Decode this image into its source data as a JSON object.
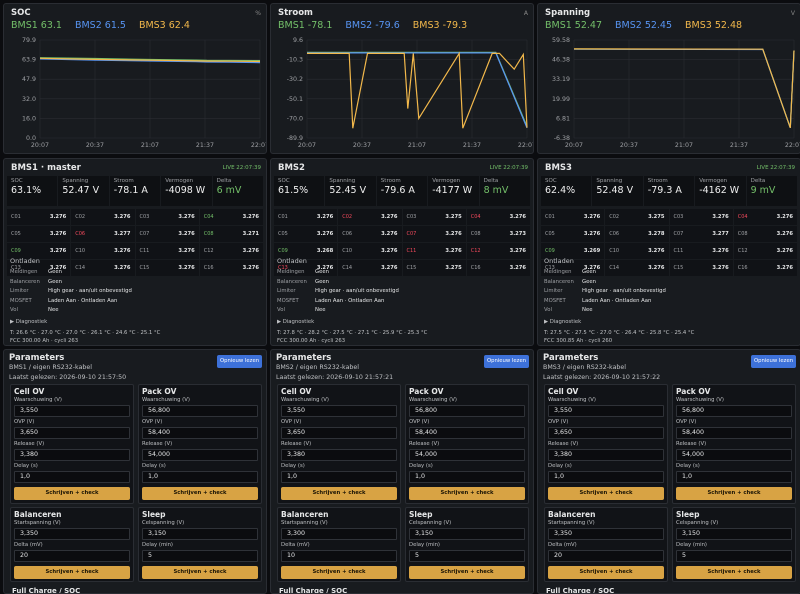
{
  "charts": [
    {
      "title": "SOC",
      "unit": "%",
      "legend": [
        {
          "label": "BMS1 63.1",
          "cls": "c1"
        },
        {
          "label": "BMS2 61.5",
          "cls": "c2"
        },
        {
          "label": "BMS3 62.4",
          "cls": "c3"
        }
      ]
    },
    {
      "title": "Stroom",
      "unit": "A",
      "legend": [
        {
          "label": "BMS1 -78.1",
          "cls": "c1"
        },
        {
          "label": "BMS2 -79.6",
          "cls": "c2"
        },
        {
          "label": "BMS3 -79.3",
          "cls": "c3"
        }
      ]
    },
    {
      "title": "Spanning",
      "unit": "V",
      "legend": [
        {
          "label": "BMS1 52.47",
          "cls": "c1"
        },
        {
          "label": "BMS2 52.45",
          "cls": "c2"
        },
        {
          "label": "BMS3 52.48",
          "cls": "c3"
        }
      ]
    }
  ],
  "chart_data": [
    {
      "type": "line",
      "title": "SOC",
      "ylabel": "%",
      "y_ticks": [
        "79.9",
        "63.9",
        "47.9",
        "32.0",
        "16.0",
        "0.0"
      ],
      "x_ticks": [
        "20:07",
        "20:37",
        "21:07",
        "21:37",
        "22:07"
      ],
      "ylim": [
        0,
        79.9
      ],
      "series": [
        {
          "name": "BMS1",
          "color": "#73bf69",
          "x": [
            "20:07",
            "20:37",
            "21:07",
            "21:32",
            "21:38",
            "21:50",
            "22:07"
          ],
          "y": [
            65.5,
            64.8,
            64.0,
            63.5,
            63.3,
            63.2,
            63.1
          ]
        },
        {
          "name": "BMS2",
          "color": "#5794f2",
          "x": [
            "20:07",
            "20:37",
            "21:07",
            "21:32",
            "21:38",
            "21:50",
            "22:07"
          ],
          "y": [
            64.5,
            63.5,
            62.8,
            62.2,
            62.0,
            61.8,
            61.5
          ]
        },
        {
          "name": "BMS3",
          "color": "#f2b84b",
          "x": [
            "20:07",
            "20:37",
            "21:07",
            "21:32",
            "21:38",
            "21:50",
            "22:07"
          ],
          "y": [
            65.0,
            64.1,
            63.4,
            62.9,
            62.7,
            62.6,
            62.4
          ]
        }
      ]
    },
    {
      "type": "line",
      "title": "Stroom",
      "ylabel": "A",
      "y_ticks": [
        "9.6",
        "-10.3",
        "-30.2",
        "-50.1",
        "-70.0",
        "-89.9"
      ],
      "x_ticks": [
        "20:07",
        "20:37",
        "21:07",
        "21:37",
        "22:07"
      ],
      "ylim": [
        -89.9,
        9.6
      ],
      "series": [
        {
          "name": "BMS1",
          "color": "#73bf69",
          "x": [
            "20:07",
            "21:50",
            "22:07"
          ],
          "y": [
            -3,
            -3,
            -78.1
          ]
        },
        {
          "name": "BMS2",
          "color": "#5794f2",
          "x": [
            "20:07",
            "21:50",
            "22:07"
          ],
          "y": [
            -3.5,
            -3.5,
            -79.6
          ]
        },
        {
          "name": "BMS3",
          "color": "#f2b84b",
          "x": [
            "20:07",
            "20:30",
            "20:32",
            "20:40",
            "20:45",
            "21:00",
            "21:02",
            "21:05",
            "21:08",
            "21:30",
            "21:32",
            "21:48",
            "21:52",
            "22:00",
            "22:05",
            "22:07"
          ],
          "y": [
            -4,
            -4,
            -80,
            -4,
            -4,
            -4,
            -60,
            -4,
            -70,
            -4,
            -80,
            -4,
            -4,
            -20,
            -5,
            -79.3
          ]
        }
      ]
    },
    {
      "type": "line",
      "title": "Spanning",
      "ylabel": "V",
      "y_ticks": [
        "59.58",
        "46.38",
        "33.19",
        "19.99",
        "6.81",
        "-6.38"
      ],
      "x_ticks": [
        "20:07",
        "20:37",
        "21:07",
        "21:37",
        "22:07"
      ],
      "ylim": [
        -6.38,
        59.58
      ],
      "series": [
        {
          "name": "BMS1",
          "color": "#73bf69",
          "x": [
            "20:07",
            "21:50",
            "22:05",
            "22:07"
          ],
          "y": [
            53.5,
            53.3,
            0.5,
            52.47
          ]
        },
        {
          "name": "BMS2",
          "color": "#5794f2",
          "x": [
            "20:07",
            "21:50",
            "22:05",
            "22:07"
          ],
          "y": [
            53.4,
            53.2,
            0.5,
            52.45
          ]
        },
        {
          "name": "BMS3",
          "color": "#f2b84b",
          "x": [
            "20:07",
            "21:50",
            "22:05",
            "22:07"
          ],
          "y": [
            53.6,
            53.4,
            0.5,
            52.48
          ]
        }
      ]
    }
  ],
  "bms": [
    {
      "title": "BMS1 · master",
      "live": "LIVE 22:07:39",
      "stats": [
        {
          "l": "SOC",
          "v": "63.1%",
          "g": false
        },
        {
          "l": "Spanning",
          "v": "52.47 V",
          "g": false
        },
        {
          "l": "Stroom",
          "v": "-78.1 A",
          "g": false
        },
        {
          "l": "Vermogen",
          "v": "-4098 W",
          "g": false
        },
        {
          "l": "Delta",
          "v": "6 mV",
          "g": true
        }
      ],
      "cells": [
        [
          "C01",
          "3.276",
          ""
        ],
        [
          "C02",
          "3.276",
          ""
        ],
        [
          "C03",
          "3.276",
          ""
        ],
        [
          "C04",
          "3.276",
          "gr"
        ],
        [
          "C05",
          "3.276",
          ""
        ],
        [
          "C06",
          "3.277",
          "r"
        ],
        [
          "C07",
          "3.276",
          ""
        ],
        [
          "C08",
          "3.271",
          "gr"
        ],
        [
          "C09",
          "3.276",
          "gr"
        ],
        [
          "C10",
          "3.276",
          ""
        ],
        [
          "C11",
          "3.276",
          ""
        ],
        [
          "C12",
          "3.276",
          ""
        ],
        [
          "C13",
          "3.276",
          ""
        ],
        [
          "C14",
          "3.276",
          ""
        ],
        [
          "C15",
          "3.276",
          ""
        ],
        [
          "C16",
          "3.276",
          ""
        ]
      ],
      "ontladen": "Ontladen",
      "kv": [
        [
          "Meldingen",
          "Geen"
        ],
        [
          "Balanceren",
          "Geen"
        ],
        [
          "Limiter",
          "High gear · aan/uit onbevestigd"
        ],
        [
          "MOSFET",
          "Laden Aan · Ontladen Aan"
        ],
        [
          "Vol",
          "Nee"
        ]
      ],
      "diag": "▶ Diagnostiek",
      "temps": "T: 26.6 °C · 27.0 °C · 27.0 °C · 26.1 °C · 24.6 °C · 25.1 °C",
      "fcc": "FCC 300.00 Ah · cycli 263",
      "params": {
        "title": "Parameters",
        "sub": "BMS1 / eigen RS232-kabel",
        "read": "Laatst gelezen: 2026-09-10 21:57:50",
        "btn": "Opnieuw lezen",
        "cellov": {
          "warn": "3,550",
          "ovp": "3,650",
          "rel": "3,380",
          "delay": "1,0"
        },
        "packov": {
          "warn": "56,800",
          "ovp": "58,400",
          "rel": "54,000",
          "delay": "1,0"
        },
        "bal": {
          "start": "3,350",
          "delta": "20"
        },
        "sleep": {
          "cel": "3,150",
          "delay": "5"
        }
      }
    },
    {
      "title": "BMS2",
      "live": "LIVE 22:07:39",
      "stats": [
        {
          "l": "SOC",
          "v": "61.5%",
          "g": false
        },
        {
          "l": "Spanning",
          "v": "52.45 V",
          "g": false
        },
        {
          "l": "Stroom",
          "v": "-79.6 A",
          "g": false
        },
        {
          "l": "Vermogen",
          "v": "-4177 W",
          "g": false
        },
        {
          "l": "Delta",
          "v": "8 mV",
          "g": true
        }
      ],
      "cells": [
        [
          "C01",
          "3.276",
          ""
        ],
        [
          "C02",
          "3.276",
          "r"
        ],
        [
          "C03",
          "3.275",
          ""
        ],
        [
          "C04",
          "3.276",
          "r"
        ],
        [
          "C05",
          "3.276",
          ""
        ],
        [
          "C06",
          "3.276",
          ""
        ],
        [
          "C07",
          "3.276",
          "r"
        ],
        [
          "C08",
          "3.273",
          ""
        ],
        [
          "C09",
          "3.268",
          "gr"
        ],
        [
          "C10",
          "3.276",
          ""
        ],
        [
          "C11",
          "3.276",
          "r"
        ],
        [
          "C12",
          "3.276",
          "r"
        ],
        [
          "C13",
          "3.276",
          "r"
        ],
        [
          "C14",
          "3.276",
          ""
        ],
        [
          "C15",
          "3.275",
          ""
        ],
        [
          "C16",
          "3.276",
          ""
        ]
      ],
      "ontladen": "Ontladen",
      "kv": [
        [
          "Meldingen",
          "Geen"
        ],
        [
          "Balanceren",
          "Geen"
        ],
        [
          "Limiter",
          "High gear · aan/uit onbevestigd"
        ],
        [
          "MOSFET",
          "Laden Aan · Ontladen Aan"
        ],
        [
          "Vol",
          "Nee"
        ]
      ],
      "diag": "▶ Diagnostiek",
      "temps": "T: 27.8 °C · 28.2 °C · 27.5 °C · 27.1 °C · 25.9 °C · 25.3 °C",
      "fcc": "FCC 300.00 Ah · cycli 263",
      "params": {
        "title": "Parameters",
        "sub": "BMS2 / eigen RS232-kabel",
        "read": "Laatst gelezen: 2026-09-10 21:57:21",
        "btn": "Opnieuw lezen",
        "cellov": {
          "warn": "3,550",
          "ovp": "3,650",
          "rel": "3,380",
          "delay": "1,0"
        },
        "packov": {
          "warn": "56,800",
          "ovp": "58,400",
          "rel": "54,000",
          "delay": "1,0"
        },
        "bal": {
          "start": "3,300",
          "delta": "10"
        },
        "sleep": {
          "cel": "3,150",
          "delay": "5"
        }
      }
    },
    {
      "title": "BMS3",
      "live": "LIVE 22:07:39",
      "stats": [
        {
          "l": "SOC",
          "v": "62.4%",
          "g": false
        },
        {
          "l": "Spanning",
          "v": "52.48 V",
          "g": false
        },
        {
          "l": "Stroom",
          "v": "-79.3 A",
          "g": false
        },
        {
          "l": "Vermogen",
          "v": "-4162 W",
          "g": false
        },
        {
          "l": "Delta",
          "v": "9 mV",
          "g": true
        }
      ],
      "cells": [
        [
          "C01",
          "3.276",
          ""
        ],
        [
          "C02",
          "3.275",
          ""
        ],
        [
          "C03",
          "3.276",
          ""
        ],
        [
          "C04",
          "3.276",
          "r"
        ],
        [
          "C05",
          "3.276",
          ""
        ],
        [
          "C06",
          "3.278",
          ""
        ],
        [
          "C07",
          "3.277",
          ""
        ],
        [
          "C08",
          "3.276",
          ""
        ],
        [
          "C09",
          "3.269",
          "gr"
        ],
        [
          "C10",
          "3.276",
          ""
        ],
        [
          "C11",
          "3.276",
          ""
        ],
        [
          "C12",
          "3.276",
          ""
        ],
        [
          "C13",
          "3.276",
          ""
        ],
        [
          "C14",
          "3.276",
          ""
        ],
        [
          "C15",
          "3.276",
          ""
        ],
        [
          "C16",
          "3.276",
          ""
        ]
      ],
      "ontladen": "Ontladen",
      "kv": [
        [
          "Meldingen",
          "Geen"
        ],
        [
          "Balanceren",
          "Geen"
        ],
        [
          "Limiter",
          "High gear · aan/uit onbevestigd"
        ],
        [
          "MOSFET",
          "Laden Aan · Ontladen Aan"
        ],
        [
          "Vol",
          "Nee"
        ]
      ],
      "diag": "▶ Diagnostiek",
      "temps": "T: 27.5 °C · 27.5 °C · 27.0 °C · 26.4 °C · 25.8 °C · 25.4 °C",
      "fcc": "FCC 300.85 Ah · cycli 260",
      "params": {
        "title": "Parameters",
        "sub": "BMS3 / eigen RS232-kabel",
        "read": "Laatst gelezen: 2026-09-10 21:57:22",
        "btn": "Opnieuw lezen",
        "cellov": {
          "warn": "3,550",
          "ovp": "3,650",
          "rel": "3,380",
          "delay": "1,0"
        },
        "packov": {
          "warn": "56,800",
          "ovp": "58,400",
          "rel": "54,000",
          "delay": "1,0"
        },
        "bal": {
          "start": "3,350",
          "delta": "20"
        },
        "sleep": {
          "cel": "3,150",
          "delay": "5"
        }
      }
    }
  ],
  "labels": {
    "cellov": "Cell OV",
    "packov": "Pack OV",
    "warn": "Waarschuwing (V)",
    "ovp": "OVP (V)",
    "rel": "Release (V)",
    "delay": "Delay (s)",
    "write": "Schrijven + check",
    "bal": "Balanceren",
    "startsp": "Startspanning (V)",
    "delta": "Delta (mV)",
    "sleep": "Sleep",
    "celsp": "Celspanning (V)",
    "delaymin": "Delay (min)",
    "fullcharge": "Full Charge / SOC"
  }
}
